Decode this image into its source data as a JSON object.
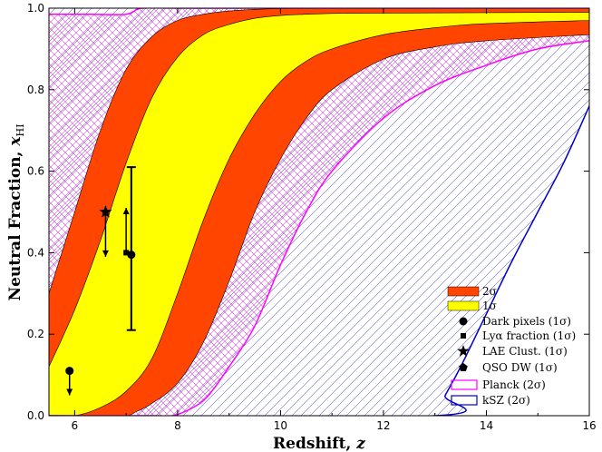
{
  "chart_data": {
    "type": "area",
    "title": "",
    "xlabel": "Redshift, z",
    "ylabel": "Neutral Fraction, x_HI",
    "xlim": [
      5.5,
      16
    ],
    "ylim": [
      0.0,
      1.0
    ],
    "x_ticks": [
      "6",
      "8",
      "10",
      "12",
      "14",
      "16"
    ],
    "y_ticks": [
      "0.0",
      "0.2",
      "0.4",
      "0.6",
      "0.8",
      "1.0"
    ],
    "colors": {
      "band_2sigma": "#ff4500",
      "band_1sigma": "#ffff00",
      "planck": "#ff00ff",
      "ksz": "#0000cc",
      "points": "#000000"
    },
    "bands": {
      "outer_upper": {
        "x": [
          5.5,
          6,
          6.5,
          7,
          7.5,
          8,
          8.5,
          9,
          9.5,
          10,
          10.5,
          11,
          12,
          16
        ],
        "y": [
          0.3,
          0.5,
          0.7,
          0.85,
          0.93,
          0.97,
          0.985,
          0.993,
          0.997,
          0.999,
          1.0,
          1.0,
          1.0,
          1.0
        ]
      },
      "inner_upper": {
        "x": [
          5.5,
          6,
          6.5,
          7,
          7.5,
          8,
          8.5,
          9,
          9.5,
          10,
          10.5,
          11,
          12,
          16
        ],
        "y": [
          0.12,
          0.26,
          0.43,
          0.62,
          0.78,
          0.88,
          0.935,
          0.96,
          0.975,
          0.982,
          0.985,
          0.987,
          0.988,
          0.99
        ]
      },
      "inner_lower": {
        "x": [
          5.5,
          6,
          6.5,
          7,
          7.5,
          8,
          8.5,
          9,
          9.5,
          10,
          10.5,
          11,
          12,
          13,
          14,
          16
        ],
        "y": [
          0.0,
          0.0,
          0.02,
          0.06,
          0.14,
          0.3,
          0.48,
          0.63,
          0.74,
          0.82,
          0.87,
          0.9,
          0.935,
          0.952,
          0.962,
          0.97
        ]
      },
      "outer_lower": {
        "x": [
          5.5,
          6,
          6.5,
          7,
          7.2,
          7.5,
          8,
          8.5,
          9,
          9.5,
          10,
          10.5,
          11,
          12,
          13,
          14,
          16
        ],
        "y": [
          0.0,
          0.0,
          0.0,
          0.0,
          0.01,
          0.03,
          0.08,
          0.18,
          0.33,
          0.5,
          0.63,
          0.73,
          0.8,
          0.875,
          0.905,
          0.92,
          0.935
        ]
      }
    },
    "planck": {
      "upper": {
        "x": [
          5.5,
          6.3,
          7.0,
          7.3,
          8,
          10,
          12,
          16
        ],
        "y": [
          0.985,
          0.985,
          0.985,
          1.0,
          1.0,
          1.0,
          1.0,
          1.0
        ]
      },
      "lower": {
        "x": [
          5.5,
          7.5,
          7.9,
          8.3,
          8.6,
          9,
          9.5,
          10,
          10.5,
          11,
          12,
          13,
          14,
          15,
          16
        ],
        "y": [
          0.0,
          0.0,
          0.0,
          0.02,
          0.05,
          0.12,
          0.22,
          0.37,
          0.5,
          0.6,
          0.73,
          0.81,
          0.86,
          0.9,
          0.92
        ]
      }
    },
    "ksz": {
      "lower": {
        "x": [
          5.5,
          13.0,
          13.2,
          13.5,
          14,
          14.5,
          15,
          15.5,
          16
        ],
        "y": [
          0.0,
          0.0,
          0.05,
          0.12,
          0.25,
          0.38,
          0.5,
          0.62,
          0.76
        ]
      },
      "upper": {
        "x": [
          5.5,
          16
        ],
        "y": [
          1.0,
          1.0
        ]
      }
    },
    "points": [
      {
        "name": "Dark pixels (1σ)",
        "marker": "circle",
        "x": 5.9,
        "y": 0.11,
        "arrow": "down",
        "arrow_to": 0.05
      },
      {
        "name": "Dark pixels (1σ)",
        "marker": "circle",
        "x": 7.1,
        "y": 0.395,
        "err_low": 0.21,
        "err_high": 0.61
      },
      {
        "name": "Lyα fraction (1σ)",
        "marker": "square",
        "x": 7.0,
        "y": 0.4,
        "arrow": "up",
        "arrow_to": 0.51
      },
      {
        "name": "LAE Clust. (1σ)",
        "marker": "star",
        "x": 6.6,
        "y": 0.5,
        "arrow": "down",
        "arrow_to": 0.39
      }
    ],
    "legend": {
      "position": "lower-right",
      "entries": [
        "2σ",
        "1σ",
        "Dark pixels (1σ)",
        "Lyα fraction (1σ)",
        "LAE Clust. (1σ)",
        "QSO DW (1σ)",
        "Planck (2σ)",
        "kSZ (2σ)"
      ]
    }
  }
}
